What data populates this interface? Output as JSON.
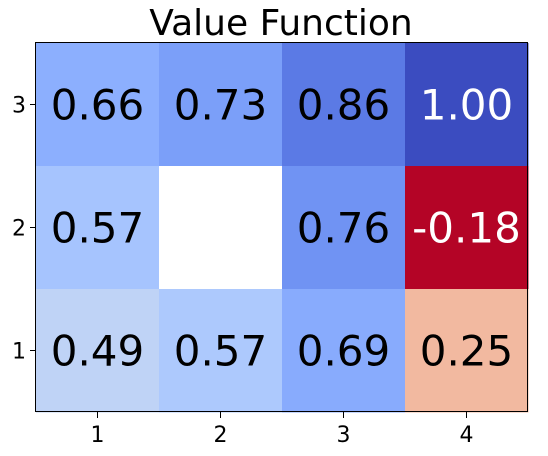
{
  "chart_data": {
    "type": "heatmap",
    "title": "Value Function",
    "xlabel": "",
    "ylabel": "",
    "x_ticks": [
      "1",
      "2",
      "3",
      "4"
    ],
    "y_ticks": [
      "1",
      "2",
      "3"
    ],
    "colormap": "coolwarm_r",
    "rows_top_to_bottom": [
      {
        "y": "3",
        "cells": [
          {
            "x": "1",
            "value": 0.66,
            "label": "0.66",
            "color": "#8caffe",
            "text_color": "#000000"
          },
          {
            "x": "2",
            "value": 0.73,
            "label": "0.73",
            "color": "#7b9ff9",
            "text_color": "#000000"
          },
          {
            "x": "3",
            "value": 0.86,
            "label": "0.86",
            "color": "#5b7ae5",
            "text_color": "#000000"
          },
          {
            "x": "4",
            "value": 1.0,
            "label": "1.00",
            "color": "#3b4cc0",
            "text_color": "#ffffff"
          }
        ]
      },
      {
        "y": "2",
        "cells": [
          {
            "x": "1",
            "value": 0.57,
            "label": "0.57",
            "color": "#a6c4fe",
            "text_color": "#000000"
          },
          {
            "x": "2",
            "value": null,
            "label": "",
            "color": "#ffffff",
            "text_color": "#000000"
          },
          {
            "x": "3",
            "value": 0.76,
            "label": "0.76",
            "color": "#7093f3",
            "text_color": "#000000"
          },
          {
            "x": "4",
            "value": -0.18,
            "label": "-0.18",
            "color": "#b40426",
            "text_color": "#ffffff"
          }
        ]
      },
      {
        "y": "1",
        "cells": [
          {
            "x": "1",
            "value": 0.49,
            "label": "0.49",
            "color": "#bfd3f6",
            "text_color": "#000000"
          },
          {
            "x": "2",
            "value": 0.57,
            "label": "0.57",
            "color": "#adc9fd",
            "text_color": "#000000"
          },
          {
            "x": "3",
            "value": 0.69,
            "label": "0.69",
            "color": "#88abfd",
            "text_color": "#000000"
          },
          {
            "x": "4",
            "value": 0.25,
            "label": "0.25",
            "color": "#f2b9a0",
            "text_color": "#000000"
          }
        ]
      }
    ]
  }
}
